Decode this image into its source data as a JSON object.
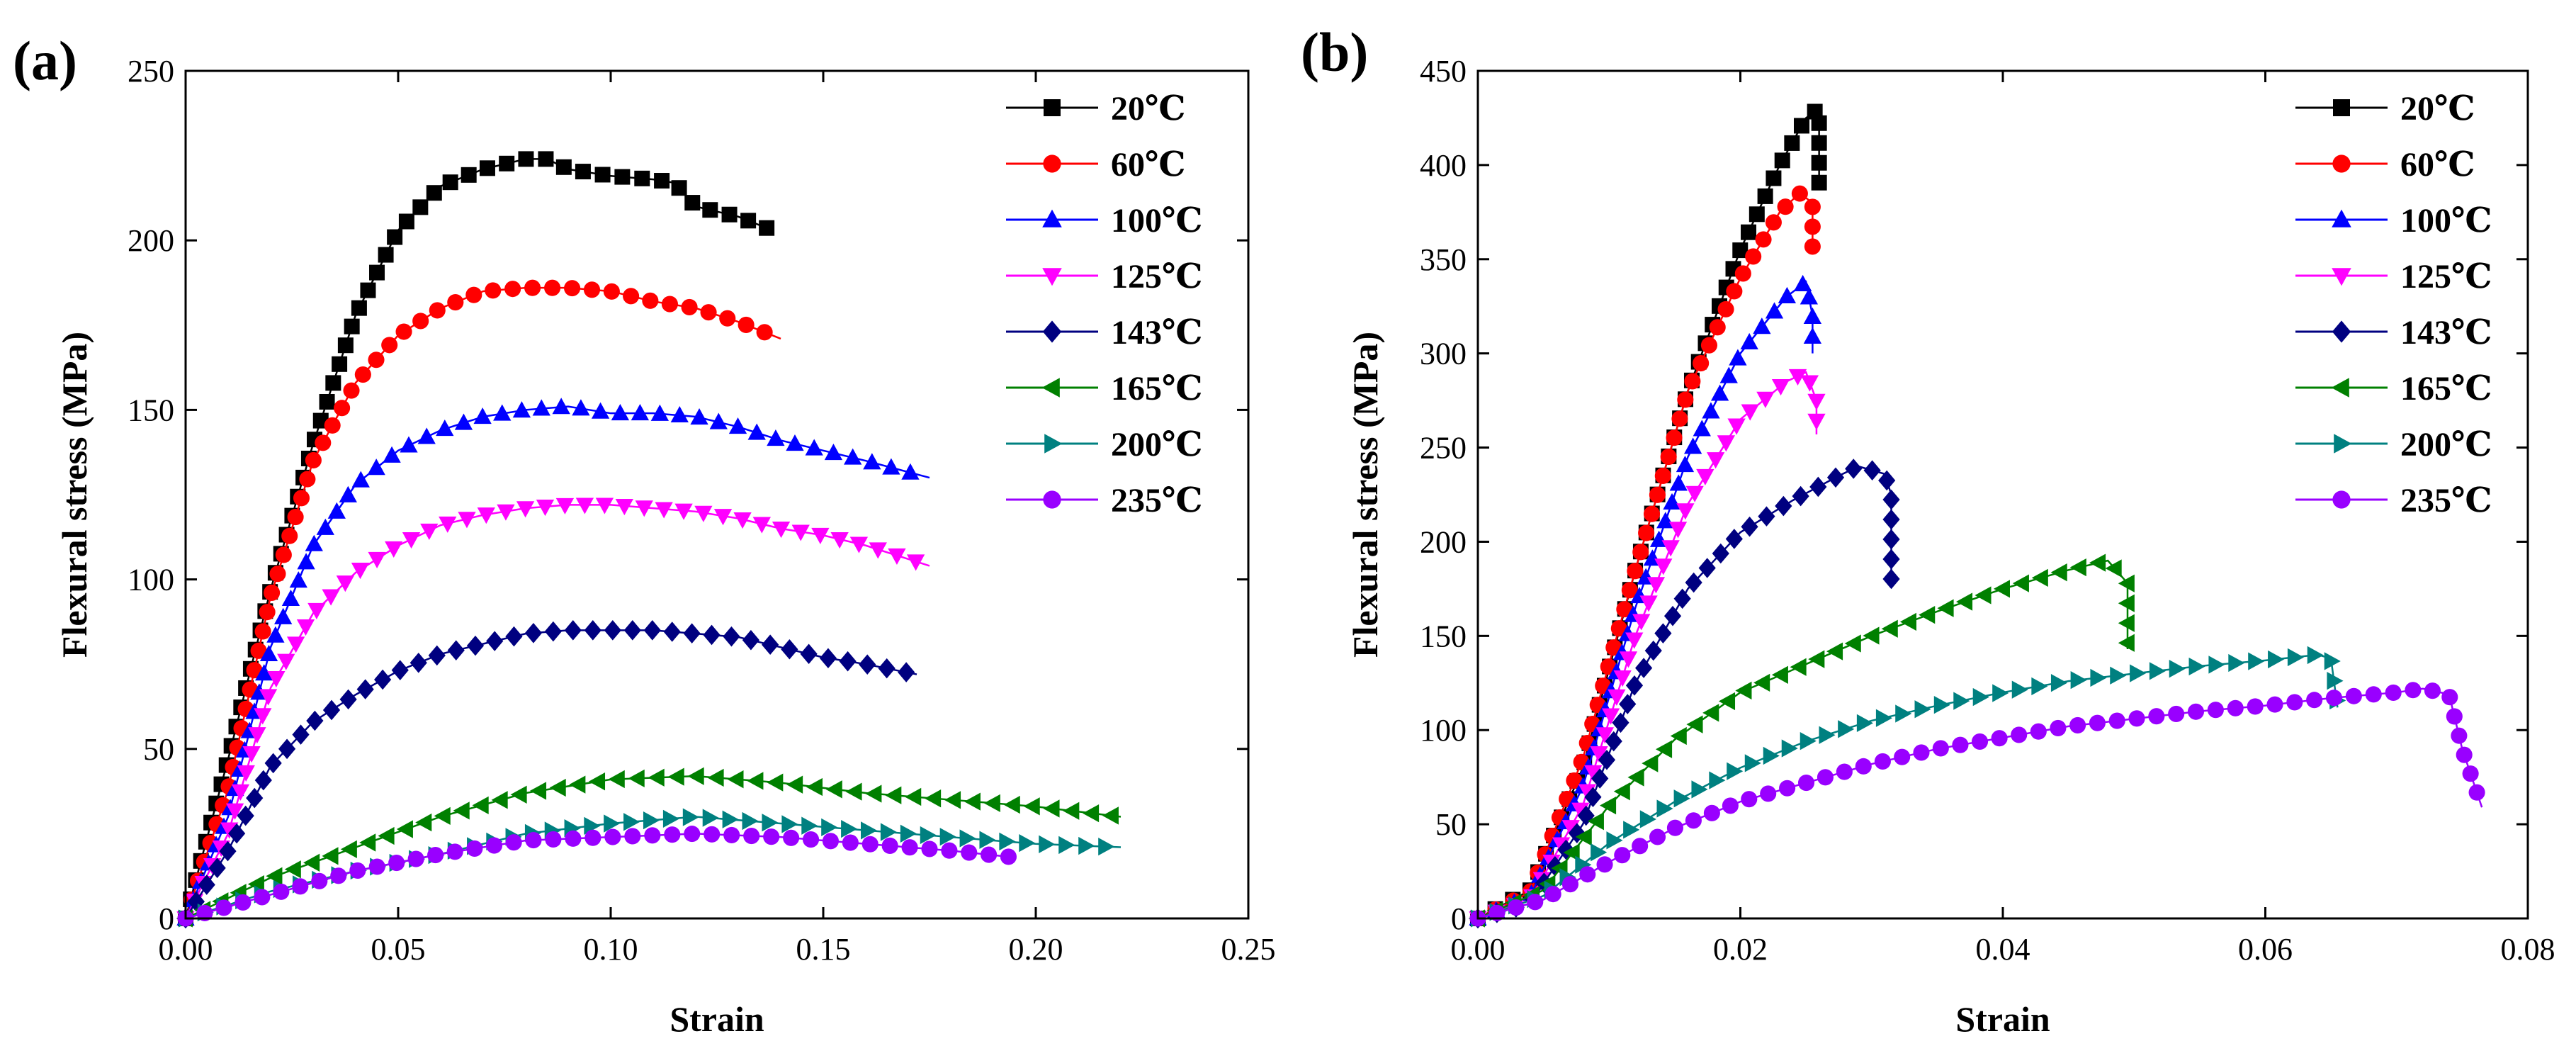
{
  "chart_data": [
    {
      "type": "line",
      "panel_label": "(a)",
      "xlabel": "Strain",
      "ylabel": "Flexural stress (MPa)",
      "xlim": [
        0,
        0.25
      ],
      "ylim": [
        0,
        250
      ],
      "xticks": [
        0.0,
        0.05,
        0.1,
        0.15,
        0.2,
        0.25
      ],
      "xtick_labels": [
        "0.00",
        "0.05",
        "0.10",
        "0.15",
        "0.20",
        "0.25"
      ],
      "yticks": [
        0,
        50,
        100,
        150,
        200,
        250
      ],
      "ytick_labels": [
        "0",
        "50",
        "100",
        "150",
        "200",
        "250"
      ],
      "legend_position": "top-right",
      "series": [
        {
          "name": "20℃",
          "color": "#000000",
          "marker": "square",
          "points": [
            [
              0,
              0
            ],
            [
              0.01,
              47
            ],
            [
              0.02,
              97
            ],
            [
              0.03,
              140
            ],
            [
              0.04,
              178
            ],
            [
              0.05,
              203
            ],
            [
              0.06,
              216
            ],
            [
              0.07,
              221
            ],
            [
              0.08,
              224
            ],
            [
              0.085,
              224
            ],
            [
              0.09,
              221
            ],
            [
              0.1,
              219
            ],
            [
              0.11,
              218
            ],
            [
              0.115,
              217
            ],
            [
              0.12,
              210
            ],
            [
              0.13,
              207
            ],
            [
              0.138,
              203
            ]
          ]
        },
        {
          "name": "60℃",
          "color": "#ff0000",
          "marker": "circle",
          "points": [
            [
              0,
              0
            ],
            [
              0.01,
              38
            ],
            [
              0.02,
              95
            ],
            [
              0.03,
              135
            ],
            [
              0.04,
              158
            ],
            [
              0.05,
              172
            ],
            [
              0.06,
              180
            ],
            [
              0.07,
              185
            ],
            [
              0.08,
              186
            ],
            [
              0.09,
              186
            ],
            [
              0.1,
              185
            ],
            [
              0.11,
              182
            ],
            [
              0.12,
              180
            ],
            [
              0.13,
              176
            ],
            [
              0.14,
              171
            ]
          ]
        },
        {
          "name": "100℃",
          "color": "#0000ff",
          "marker": "triangle-up",
          "points": [
            [
              0,
              0
            ],
            [
              0.01,
              30
            ],
            [
              0.02,
              80
            ],
            [
              0.03,
              110
            ],
            [
              0.04,
              128
            ],
            [
              0.05,
              138
            ],
            [
              0.06,
              144
            ],
            [
              0.07,
              148
            ],
            [
              0.08,
              150
            ],
            [
              0.09,
              151
            ],
            [
              0.1,
              149
            ],
            [
              0.11,
              149
            ],
            [
              0.12,
              148
            ],
            [
              0.13,
              145
            ],
            [
              0.14,
              141
            ],
            [
              0.15,
              138
            ],
            [
              0.16,
              135
            ],
            [
              0.175,
              130
            ]
          ]
        },
        {
          "name": "125℃",
          "color": "#ff00ff",
          "marker": "triangle-down",
          "points": [
            [
              0,
              0
            ],
            [
              0.01,
              25
            ],
            [
              0.02,
              68
            ],
            [
              0.03,
              90
            ],
            [
              0.04,
              102
            ],
            [
              0.05,
              110
            ],
            [
              0.06,
              116
            ],
            [
              0.07,
              119
            ],
            [
              0.08,
              121
            ],
            [
              0.09,
              122
            ],
            [
              0.1,
              122
            ],
            [
              0.11,
              121
            ],
            [
              0.12,
              120
            ],
            [
              0.13,
              118
            ],
            [
              0.14,
              115
            ],
            [
              0.15,
              113
            ],
            [
              0.16,
              110
            ],
            [
              0.175,
              104
            ]
          ]
        },
        {
          "name": "143℃",
          "color": "#000080",
          "marker": "diamond",
          "points": [
            [
              0,
              0
            ],
            [
              0.01,
              20
            ],
            [
              0.02,
              45
            ],
            [
              0.03,
              58
            ],
            [
              0.04,
              66
            ],
            [
              0.05,
              73
            ],
            [
              0.06,
              78
            ],
            [
              0.07,
              81
            ],
            [
              0.08,
              84
            ],
            [
              0.09,
              85
            ],
            [
              0.1,
              85
            ],
            [
              0.11,
              85
            ],
            [
              0.12,
              84
            ],
            [
              0.13,
              83
            ],
            [
              0.14,
              80
            ],
            [
              0.15,
              77
            ],
            [
              0.16,
              75
            ],
            [
              0.172,
              72
            ]
          ]
        },
        {
          "name": "165℃",
          "color": "#008000",
          "marker": "triangle-left",
          "points": [
            [
              0,
              0
            ],
            [
              0.02,
              12
            ],
            [
              0.04,
              21
            ],
            [
              0.06,
              30
            ],
            [
              0.08,
              37
            ],
            [
              0.1,
              41
            ],
            [
              0.12,
              42
            ],
            [
              0.14,
              40
            ],
            [
              0.16,
              37
            ],
            [
              0.18,
              35
            ],
            [
              0.2,
              33
            ],
            [
              0.22,
              30
            ]
          ]
        },
        {
          "name": "200℃",
          "color": "#008080",
          "marker": "triangle-right",
          "points": [
            [
              0,
              0
            ],
            [
              0.02,
              8
            ],
            [
              0.04,
              14
            ],
            [
              0.06,
              19
            ],
            [
              0.08,
              25
            ],
            [
              0.1,
              28
            ],
            [
              0.12,
              30
            ],
            [
              0.14,
              28
            ],
            [
              0.16,
              26
            ],
            [
              0.18,
              24
            ],
            [
              0.2,
              22
            ],
            [
              0.22,
              21
            ]
          ]
        },
        {
          "name": "235℃",
          "color": "#9900ff",
          "marker": "circle",
          "points": [
            [
              0,
              0
            ],
            [
              0.02,
              7
            ],
            [
              0.04,
              14
            ],
            [
              0.06,
              19
            ],
            [
              0.08,
              23
            ],
            [
              0.1,
              24
            ],
            [
              0.12,
              25
            ],
            [
              0.14,
              24
            ],
            [
              0.16,
              22
            ],
            [
              0.18,
              20
            ],
            [
              0.195,
              18
            ]
          ]
        }
      ]
    },
    {
      "type": "line",
      "panel_label": "(b)",
      "xlabel": "Strain",
      "ylabel": "Flexural stress (MPa)",
      "xlim": [
        0,
        0.08
      ],
      "ylim": [
        0,
        450
      ],
      "xticks": [
        0.0,
        0.02,
        0.04,
        0.06,
        0.08
      ],
      "xtick_labels": [
        "0.00",
        "0.02",
        "0.04",
        "0.06",
        "0.08"
      ],
      "yticks": [
        0,
        50,
        100,
        150,
        200,
        250,
        300,
        350,
        400,
        450
      ],
      "ytick_labels": [
        "0",
        "50",
        "100",
        "150",
        "200",
        "250",
        "300",
        "350",
        "400",
        "450"
      ],
      "legend_position": "top-right",
      "series": [
        {
          "name": "20℃",
          "color": "#000000",
          "marker": "square",
          "points": [
            [
              0,
              0
            ],
            [
              0.004,
              15
            ],
            [
              0.008,
              80
            ],
            [
              0.012,
              185
            ],
            [
              0.016,
              280
            ],
            [
              0.02,
              355
            ],
            [
              0.023,
              400
            ],
            [
              0.025,
              425
            ],
            [
              0.026,
              430
            ],
            [
              0.026,
              387
            ]
          ]
        },
        {
          "name": "60℃",
          "color": "#ff0000",
          "marker": "circle",
          "points": [
            [
              0,
              0
            ],
            [
              0.004,
              14
            ],
            [
              0.008,
              85
            ],
            [
              0.012,
              185
            ],
            [
              0.016,
              280
            ],
            [
              0.02,
              340
            ],
            [
              0.023,
              375
            ],
            [
              0.0245,
              385
            ],
            [
              0.0255,
              380
            ],
            [
              0.0255,
              355
            ]
          ]
        },
        {
          "name": "100℃",
          "color": "#0000ff",
          "marker": "triangle-up",
          "points": [
            [
              0,
              0
            ],
            [
              0.004,
              12
            ],
            [
              0.008,
              70
            ],
            [
              0.012,
              165
            ],
            [
              0.016,
              245
            ],
            [
              0.02,
              300
            ],
            [
              0.0235,
              330
            ],
            [
              0.025,
              338
            ],
            [
              0.0255,
              320
            ],
            [
              0.0255,
              300
            ]
          ]
        },
        {
          "name": "125℃",
          "color": "#ff00ff",
          "marker": "triangle-down",
          "points": [
            [
              0,
              0
            ],
            [
              0.004,
              10
            ],
            [
              0.008,
              60
            ],
            [
              0.012,
              150
            ],
            [
              0.016,
              220
            ],
            [
              0.02,
              265
            ],
            [
              0.0235,
              285
            ],
            [
              0.025,
              290
            ],
            [
              0.0258,
              275
            ],
            [
              0.0258,
              257
            ]
          ]
        },
        {
          "name": "143℃",
          "color": "#000080",
          "marker": "diamond",
          "points": [
            [
              0,
              0
            ],
            [
              0.004,
              8
            ],
            [
              0.008,
              50
            ],
            [
              0.012,
              125
            ],
            [
              0.016,
              175
            ],
            [
              0.02,
              205
            ],
            [
              0.024,
              222
            ],
            [
              0.0275,
              235
            ],
            [
              0.029,
              240
            ],
            [
              0.031,
              236
            ],
            [
              0.0315,
              225
            ],
            [
              0.0315,
              204
            ],
            [
              0.0315,
              176
            ]
          ]
        },
        {
          "name": "165℃",
          "color": "#008000",
          "marker": "triangle-left",
          "points": [
            [
              0,
              0
            ],
            [
              0.005,
              15
            ],
            [
              0.01,
              60
            ],
            [
              0.015,
              95
            ],
            [
              0.02,
              120
            ],
            [
              0.025,
              135
            ],
            [
              0.03,
              150
            ],
            [
              0.035,
              163
            ],
            [
              0.04,
              175
            ],
            [
              0.045,
              185
            ],
            [
              0.048,
              190
            ],
            [
              0.0495,
              178
            ],
            [
              0.0495,
              143
            ]
          ]
        },
        {
          "name": "200℃",
          "color": "#008080",
          "marker": "triangle-right",
          "points": [
            [
              0,
              0
            ],
            [
              0.005,
              12
            ],
            [
              0.01,
              40
            ],
            [
              0.015,
              62
            ],
            [
              0.02,
              80
            ],
            [
              0.025,
              94
            ],
            [
              0.03,
              105
            ],
            [
              0.035,
              113
            ],
            [
              0.04,
              120
            ],
            [
              0.045,
              126
            ],
            [
              0.05,
              130
            ],
            [
              0.055,
              134
            ],
            [
              0.06,
              137
            ],
            [
              0.064,
              140
            ],
            [
              0.065,
              138
            ],
            [
              0.0655,
              112
            ]
          ]
        },
        {
          "name": "235℃",
          "color": "#9900ff",
          "marker": "circle",
          "points": [
            [
              0,
              0
            ],
            [
              0.005,
              10
            ],
            [
              0.01,
              30
            ],
            [
              0.015,
              48
            ],
            [
              0.02,
              62
            ],
            [
              0.025,
              72
            ],
            [
              0.03,
              82
            ],
            [
              0.035,
              90
            ],
            [
              0.04,
              96
            ],
            [
              0.045,
              102
            ],
            [
              0.05,
              106
            ],
            [
              0.055,
              110
            ],
            [
              0.06,
              113
            ],
            [
              0.065,
              117
            ],
            [
              0.07,
              120
            ],
            [
              0.072,
              122
            ],
            [
              0.074,
              119
            ],
            [
              0.075,
              90
            ],
            [
              0.0765,
              59
            ]
          ]
        }
      ]
    }
  ]
}
